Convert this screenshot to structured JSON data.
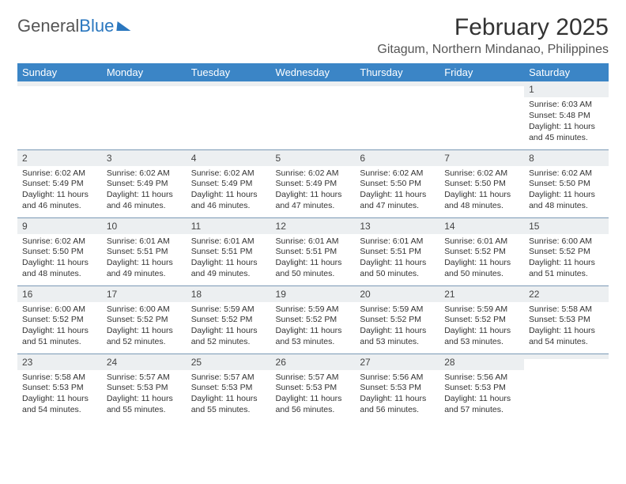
{
  "brand": {
    "part1": "General",
    "part2": "Blue"
  },
  "title": "February 2025",
  "subtitle": "Gitagum, Northern Mindanao, Philippines",
  "colors": {
    "header_bg": "#3b85c6",
    "header_text": "#ffffff",
    "daynum_bg": "#eceff1",
    "row_divider": "#7a99b5",
    "brand_blue": "#2a77bf"
  },
  "weekdays": [
    "Sunday",
    "Monday",
    "Tuesday",
    "Wednesday",
    "Thursday",
    "Friday",
    "Saturday"
  ],
  "weeks": [
    [
      null,
      null,
      null,
      null,
      null,
      null,
      {
        "n": "1",
        "sr": "Sunrise: 6:03 AM",
        "ss": "Sunset: 5:48 PM",
        "dl": "Daylight: 11 hours and 45 minutes."
      }
    ],
    [
      {
        "n": "2",
        "sr": "Sunrise: 6:02 AM",
        "ss": "Sunset: 5:49 PM",
        "dl": "Daylight: 11 hours and 46 minutes."
      },
      {
        "n": "3",
        "sr": "Sunrise: 6:02 AM",
        "ss": "Sunset: 5:49 PM",
        "dl": "Daylight: 11 hours and 46 minutes."
      },
      {
        "n": "4",
        "sr": "Sunrise: 6:02 AM",
        "ss": "Sunset: 5:49 PM",
        "dl": "Daylight: 11 hours and 46 minutes."
      },
      {
        "n": "5",
        "sr": "Sunrise: 6:02 AM",
        "ss": "Sunset: 5:49 PM",
        "dl": "Daylight: 11 hours and 47 minutes."
      },
      {
        "n": "6",
        "sr": "Sunrise: 6:02 AM",
        "ss": "Sunset: 5:50 PM",
        "dl": "Daylight: 11 hours and 47 minutes."
      },
      {
        "n": "7",
        "sr": "Sunrise: 6:02 AM",
        "ss": "Sunset: 5:50 PM",
        "dl": "Daylight: 11 hours and 48 minutes."
      },
      {
        "n": "8",
        "sr": "Sunrise: 6:02 AM",
        "ss": "Sunset: 5:50 PM",
        "dl": "Daylight: 11 hours and 48 minutes."
      }
    ],
    [
      {
        "n": "9",
        "sr": "Sunrise: 6:02 AM",
        "ss": "Sunset: 5:50 PM",
        "dl": "Daylight: 11 hours and 48 minutes."
      },
      {
        "n": "10",
        "sr": "Sunrise: 6:01 AM",
        "ss": "Sunset: 5:51 PM",
        "dl": "Daylight: 11 hours and 49 minutes."
      },
      {
        "n": "11",
        "sr": "Sunrise: 6:01 AM",
        "ss": "Sunset: 5:51 PM",
        "dl": "Daylight: 11 hours and 49 minutes."
      },
      {
        "n": "12",
        "sr": "Sunrise: 6:01 AM",
        "ss": "Sunset: 5:51 PM",
        "dl": "Daylight: 11 hours and 50 minutes."
      },
      {
        "n": "13",
        "sr": "Sunrise: 6:01 AM",
        "ss": "Sunset: 5:51 PM",
        "dl": "Daylight: 11 hours and 50 minutes."
      },
      {
        "n": "14",
        "sr": "Sunrise: 6:01 AM",
        "ss": "Sunset: 5:52 PM",
        "dl": "Daylight: 11 hours and 50 minutes."
      },
      {
        "n": "15",
        "sr": "Sunrise: 6:00 AM",
        "ss": "Sunset: 5:52 PM",
        "dl": "Daylight: 11 hours and 51 minutes."
      }
    ],
    [
      {
        "n": "16",
        "sr": "Sunrise: 6:00 AM",
        "ss": "Sunset: 5:52 PM",
        "dl": "Daylight: 11 hours and 51 minutes."
      },
      {
        "n": "17",
        "sr": "Sunrise: 6:00 AM",
        "ss": "Sunset: 5:52 PM",
        "dl": "Daylight: 11 hours and 52 minutes."
      },
      {
        "n": "18",
        "sr": "Sunrise: 5:59 AM",
        "ss": "Sunset: 5:52 PM",
        "dl": "Daylight: 11 hours and 52 minutes."
      },
      {
        "n": "19",
        "sr": "Sunrise: 5:59 AM",
        "ss": "Sunset: 5:52 PM",
        "dl": "Daylight: 11 hours and 53 minutes."
      },
      {
        "n": "20",
        "sr": "Sunrise: 5:59 AM",
        "ss": "Sunset: 5:52 PM",
        "dl": "Daylight: 11 hours and 53 minutes."
      },
      {
        "n": "21",
        "sr": "Sunrise: 5:59 AM",
        "ss": "Sunset: 5:52 PM",
        "dl": "Daylight: 11 hours and 53 minutes."
      },
      {
        "n": "22",
        "sr": "Sunrise: 5:58 AM",
        "ss": "Sunset: 5:53 PM",
        "dl": "Daylight: 11 hours and 54 minutes."
      }
    ],
    [
      {
        "n": "23",
        "sr": "Sunrise: 5:58 AM",
        "ss": "Sunset: 5:53 PM",
        "dl": "Daylight: 11 hours and 54 minutes."
      },
      {
        "n": "24",
        "sr": "Sunrise: 5:57 AM",
        "ss": "Sunset: 5:53 PM",
        "dl": "Daylight: 11 hours and 55 minutes."
      },
      {
        "n": "25",
        "sr": "Sunrise: 5:57 AM",
        "ss": "Sunset: 5:53 PM",
        "dl": "Daylight: 11 hours and 55 minutes."
      },
      {
        "n": "26",
        "sr": "Sunrise: 5:57 AM",
        "ss": "Sunset: 5:53 PM",
        "dl": "Daylight: 11 hours and 56 minutes."
      },
      {
        "n": "27",
        "sr": "Sunrise: 5:56 AM",
        "ss": "Sunset: 5:53 PM",
        "dl": "Daylight: 11 hours and 56 minutes."
      },
      {
        "n": "28",
        "sr": "Sunrise: 5:56 AM",
        "ss": "Sunset: 5:53 PM",
        "dl": "Daylight: 11 hours and 57 minutes."
      },
      null
    ]
  ]
}
